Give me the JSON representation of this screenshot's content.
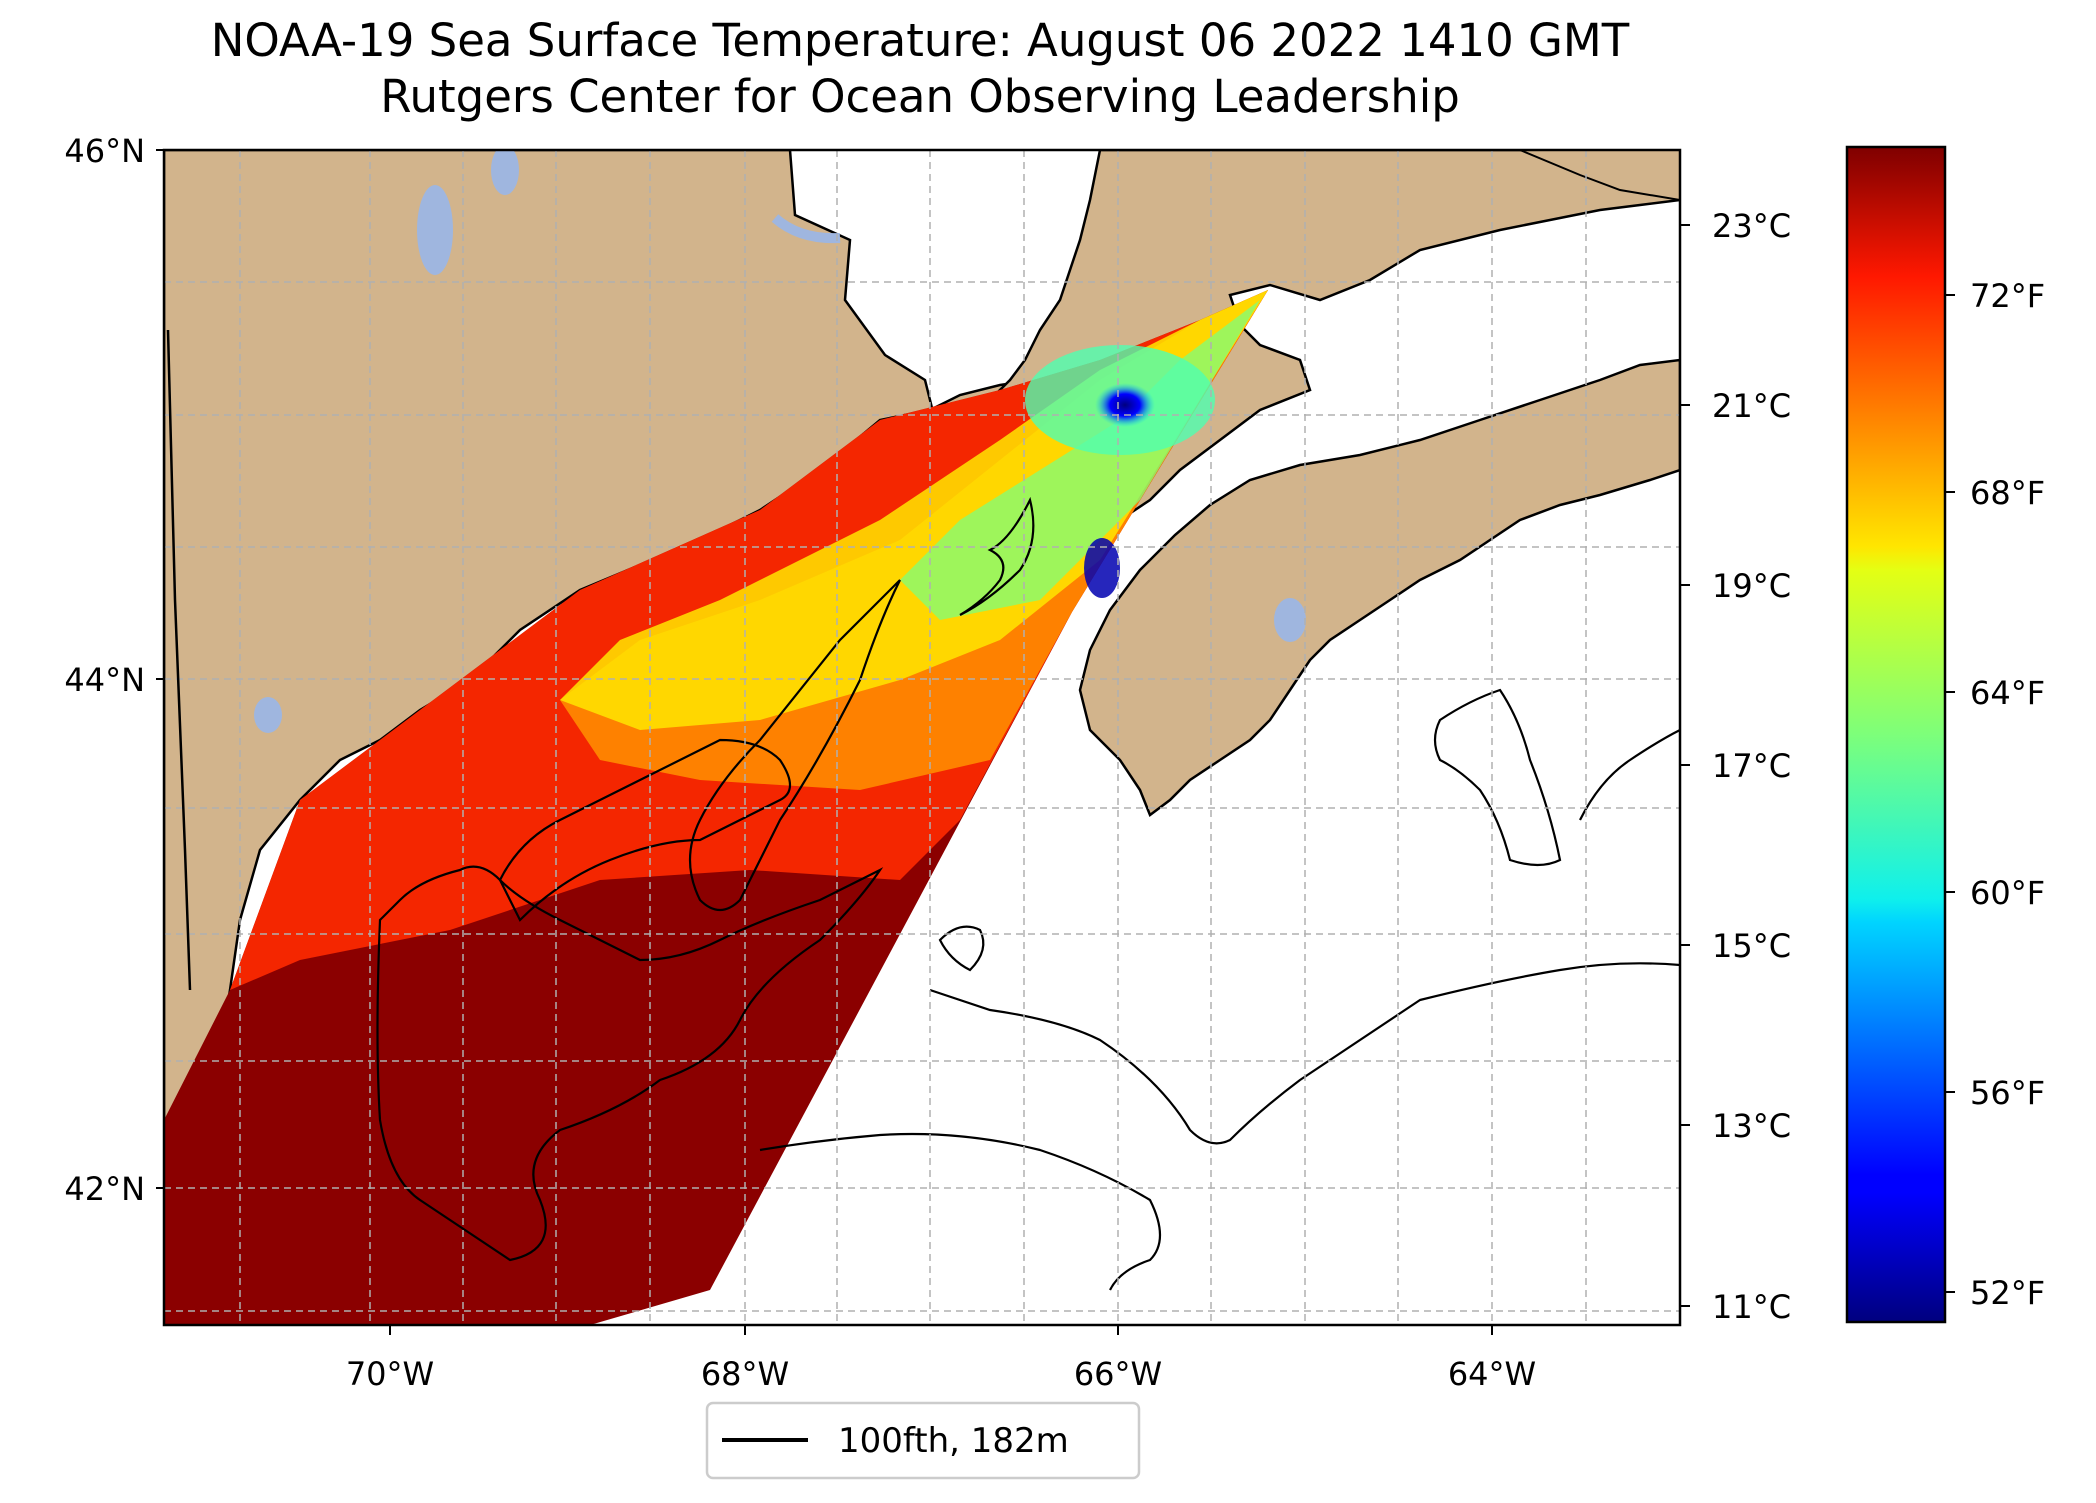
{
  "title": {
    "line1": "NOAA-19 Sea Surface Temperature: August 06 2022 1410 GMT",
    "line2": "Rutgers Center for Ocean Observing Leadership"
  },
  "map": {
    "lon_range": [
      -71.1,
      -63.0
    ],
    "lat_range": [
      41.5,
      46.0
    ],
    "lat_ticks": [
      {
        "value": 46,
        "label": "46°N"
      },
      {
        "value": 44,
        "label": "44°N"
      },
      {
        "value": 42,
        "label": "42°N"
      }
    ],
    "lon_ticks": [
      {
        "value": -70,
        "label": "70°W"
      },
      {
        "value": -68,
        "label": "68°W"
      },
      {
        "value": -66,
        "label": "66°W"
      },
      {
        "value": -64,
        "label": "64°W"
      }
    ],
    "gridlines": "dashed",
    "land_color": "#d2b48c",
    "lake_color": "#9fb6df",
    "no_data_color": "#ffffff",
    "features": {
      "contour": "100fth isobath",
      "overlay": "NOAA-19 SST swath"
    }
  },
  "legend": {
    "label": "100fth, 182m",
    "placement": "bottom-center"
  },
  "colorbar": {
    "colormap": "jet",
    "celsius_labels": [
      "23°C",
      "21°C",
      "19°C",
      "17°C",
      "15°C",
      "13°C",
      "11°C"
    ],
    "fahrenheit_labels": [
      "72°F",
      "68°F",
      "64°F",
      "60°F",
      "56°F",
      "52°F"
    ],
    "celsius_values": [
      23,
      21,
      19,
      17,
      15,
      13,
      11
    ],
    "range_c": [
      10.8,
      23.9
    ]
  }
}
